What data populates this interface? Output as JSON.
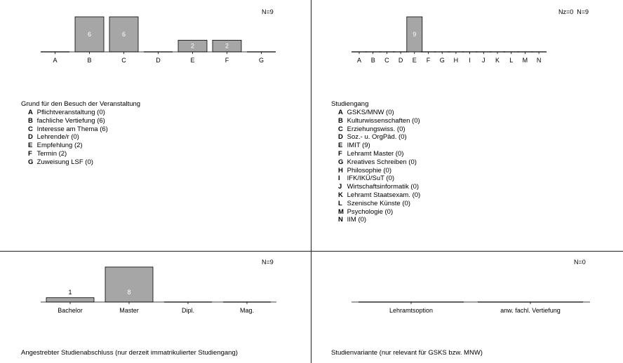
{
  "chart_data": [
    {
      "type": "bar",
      "n_label": "N=9",
      "categories": [
        "A",
        "B",
        "C",
        "D",
        "E",
        "F",
        "G"
      ],
      "values": [
        0,
        6,
        6,
        0,
        2,
        2,
        0
      ],
      "title": "Grund für den Besuch der Veranstaltung",
      "legend": [
        {
          "key": "A",
          "text": "Pflichtveranstaltung (0)"
        },
        {
          "key": "B",
          "text": "fachliche Vertiefung (6)"
        },
        {
          "key": "C",
          "text": "Interesse am Thema (6)"
        },
        {
          "key": "D",
          "text": "Lehrende/r (0)"
        },
        {
          "key": "E",
          "text": "Empfehlung (2)"
        },
        {
          "key": "F",
          "text": "Termin (2)"
        },
        {
          "key": "G",
          "text": "Zuweisung LSF (0)"
        }
      ],
      "bar_color": "#a6a6a6",
      "ylim": [
        0,
        6
      ]
    },
    {
      "type": "bar",
      "n_label": "Nz=0  N=9",
      "categories": [
        "A",
        "B",
        "C",
        "D",
        "E",
        "F",
        "G",
        "H",
        "I",
        "J",
        "K",
        "L",
        "M",
        "N"
      ],
      "values": [
        0,
        0,
        0,
        0,
        9,
        0,
        0,
        0,
        0,
        0,
        0,
        0,
        0,
        0
      ],
      "title": "Studiengang",
      "legend": [
        {
          "key": "A",
          "text": "GSKS/MNW (0)"
        },
        {
          "key": "B",
          "text": "Kulturwissenschaften (0)"
        },
        {
          "key": "C",
          "text": "Erziehungswiss. (0)"
        },
        {
          "key": "D",
          "text": "Soz.- u. OrgPäd. (0)"
        },
        {
          "key": "E",
          "text": "IMIT (9)"
        },
        {
          "key": "F",
          "text": "Lehramt Master (0)"
        },
        {
          "key": "G",
          "text": "Kreatives Schreiben (0)"
        },
        {
          "key": "H",
          "text": "Philosophie (0)"
        },
        {
          "key": "I",
          "text": "IFK/IKÜ/SuT (0)"
        },
        {
          "key": "J",
          "text": "Wirtschaftsinformatik (0)"
        },
        {
          "key": "K",
          "text": "Lehramt Staatsexam. (0)"
        },
        {
          "key": "L",
          "text": "Szenische Künste (0)"
        },
        {
          "key": "M",
          "text": "Psychologie (0)"
        },
        {
          "key": "N",
          "text": "IIM (0)"
        }
      ],
      "bar_color": "#a6a6a6",
      "ylim": [
        0,
        9
      ]
    },
    {
      "type": "bar",
      "n_label": "N=9",
      "categories": [
        "Bachelor",
        "Master",
        "Dipl.",
        "Mag."
      ],
      "values": [
        1,
        8,
        0,
        0
      ],
      "title": "Angestrebter Studienabschluss (nur derzeit immatrikulierter Studiengang)",
      "bar_color": "#a6a6a6",
      "ylim": [
        0,
        8
      ]
    },
    {
      "type": "bar",
      "n_label": "N=0",
      "categories": [
        "Lehramtsoption",
        "anw. fachl. Vertiefung"
      ],
      "values": [
        0,
        0
      ],
      "title": "Studienvariante (nur relevant für GSKS bzw. MNW)",
      "bar_color": "#a6a6a6",
      "ylim": [
        0,
        1
      ]
    }
  ]
}
